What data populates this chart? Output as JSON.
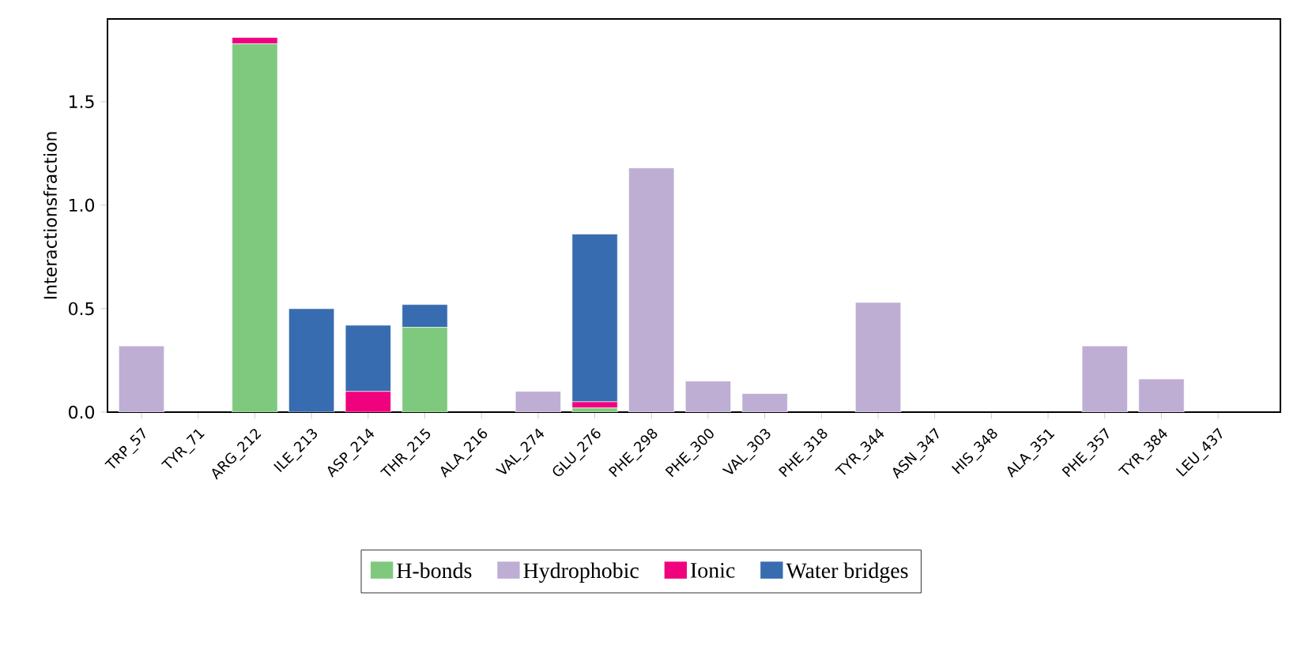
{
  "chart_data": {
    "type": "bar",
    "stacked": true,
    "ylabel": "Interactionsfraction",
    "categories": [
      "TRP_57",
      "TYR_71",
      "ARG_212",
      "ILE_213",
      "ASP_214",
      "THR_215",
      "ALA_216",
      "VAL_274",
      "GLU_276",
      "PHE_298",
      "PHE_300",
      "VAL_303",
      "PHE_318",
      "TYR_344",
      "ASN_347",
      "HIS_348",
      "ALA_351",
      "PHE_357",
      "TYR_384",
      "LEU_437"
    ],
    "series": [
      {
        "name": "H-bonds",
        "color": "#7fc97f",
        "values": [
          0,
          0,
          1.78,
          0,
          0,
          0.41,
          0,
          0,
          0.02,
          0,
          0,
          0,
          0,
          0,
          0,
          0,
          0,
          0,
          0,
          0
        ]
      },
      {
        "name": "Hydrophobic",
        "color": "#beaed4",
        "values": [
          0.32,
          0,
          0,
          0,
          0,
          0,
          0,
          0.1,
          0,
          1.18,
          0.15,
          0.09,
          0,
          0.53,
          0,
          0,
          0,
          0.32,
          0.16,
          0
        ]
      },
      {
        "name": "Ionic",
        "color": "#f0027f",
        "values": [
          0,
          0,
          0.03,
          0,
          0.1,
          0,
          0,
          0,
          0.03,
          0,
          0,
          0,
          0,
          0,
          0,
          0,
          0,
          0,
          0,
          0
        ]
      },
      {
        "name": "Water bridges",
        "color": "#386cb0",
        "values": [
          0,
          0,
          0,
          0.5,
          0.32,
          0.11,
          0,
          0,
          0.81,
          0,
          0,
          0,
          0,
          0,
          0,
          0,
          0,
          0,
          0,
          0
        ]
      }
    ],
    "ylim": [
      0,
      1.9
    ],
    "yticks": [
      {
        "value": 0,
        "label": "0.0"
      },
      {
        "value": 0.5,
        "label": "0.5"
      },
      {
        "value": 1,
        "label": "1.0"
      },
      {
        "value": 1.5,
        "label": "1.5"
      }
    ],
    "legend": "bottom"
  }
}
